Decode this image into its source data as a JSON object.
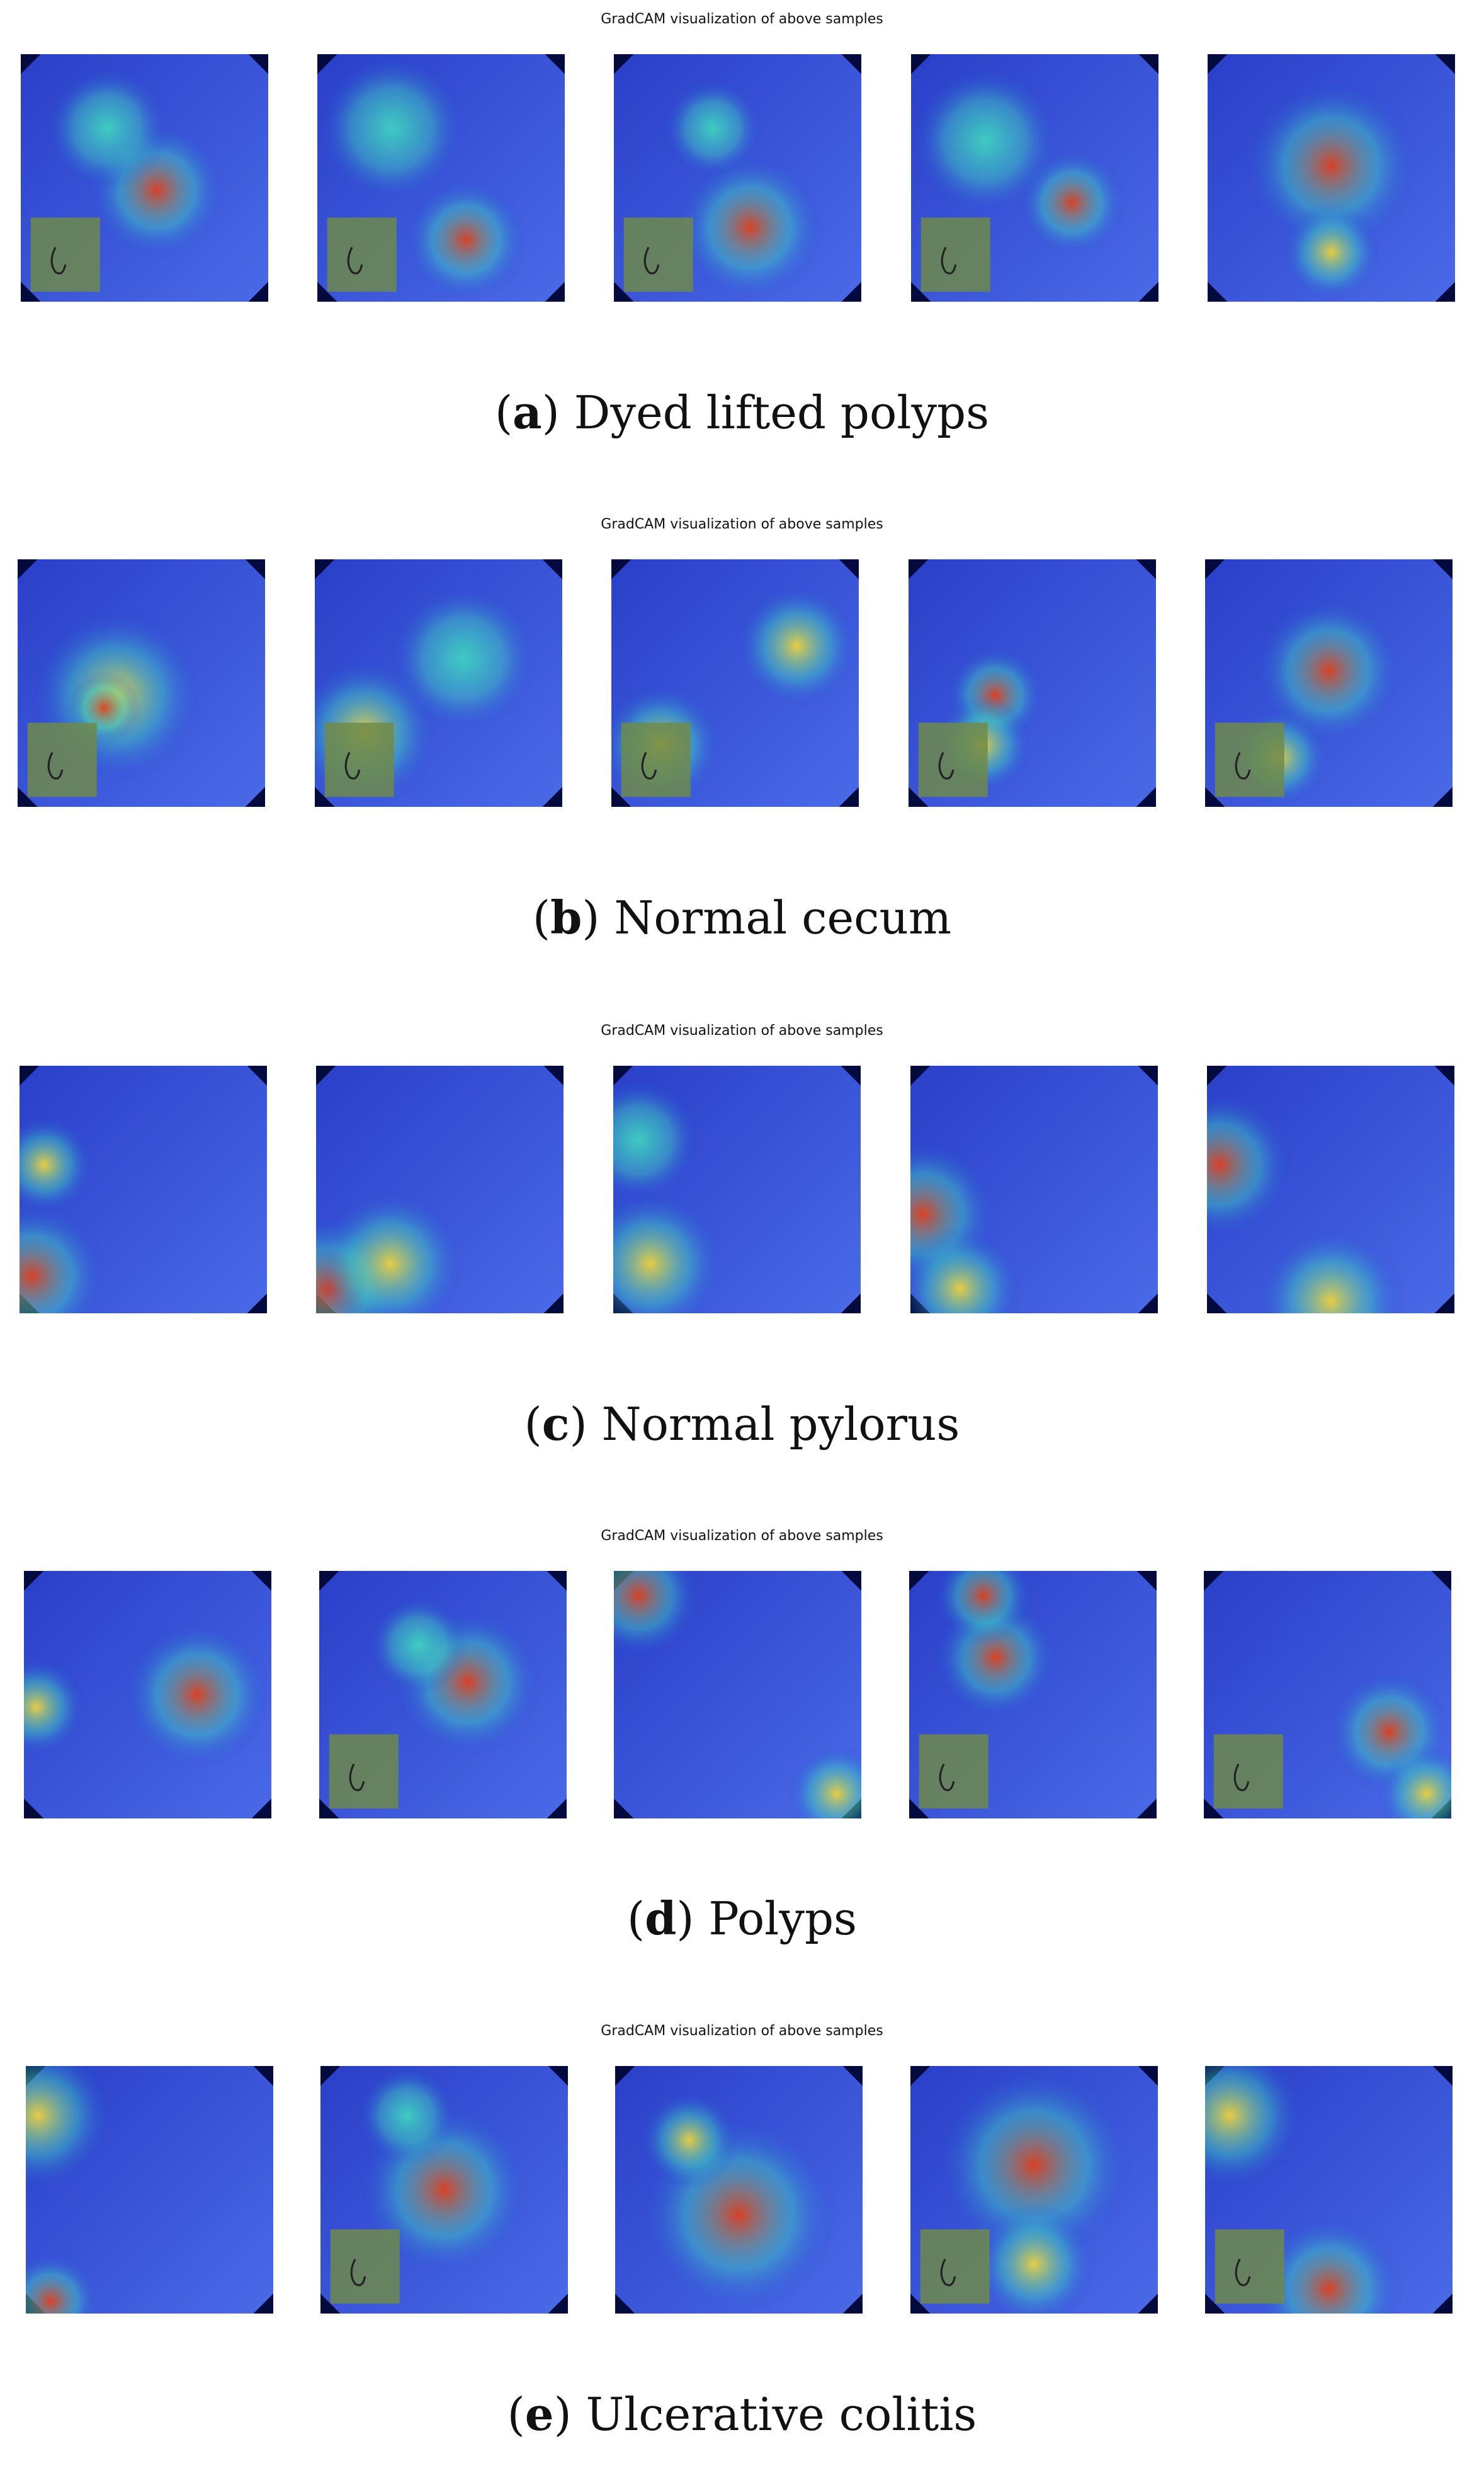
{
  "panel_title": "GradCAM visualization of above samples",
  "panels": [
    {
      "letter": "a",
      "label": "Dyed lifted polyps"
    },
    {
      "letter": "b",
      "label": "Normal cecum"
    },
    {
      "letter": "c",
      "label": "Normal pylorus"
    },
    {
      "letter": "d",
      "label": "Polyps"
    },
    {
      "letter": "e",
      "label": "Ulcerative colitis"
    }
  ],
  "colors": {
    "background": "#ffffff",
    "frame_dark": "#030a3e",
    "heat_low": "#1e3cd8",
    "heat_mid": "#3fd1c0",
    "heat_warm": "#f0d23c",
    "heat_high": "#e0401c",
    "inset_box": "#6f8a4a"
  }
}
